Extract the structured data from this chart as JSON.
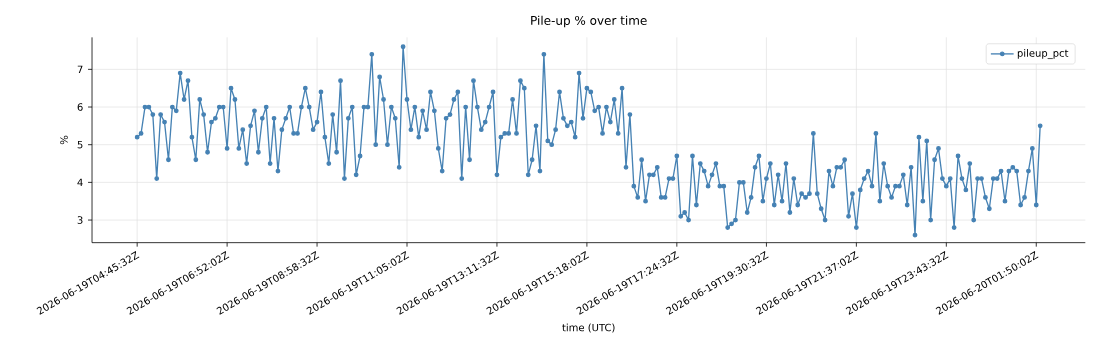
{
  "chart_data": {
    "type": "line",
    "title": "Pile-up % over time",
    "xlabel": "time (UTC)",
    "ylabel": "%",
    "x": [
      "2026-06-19T04:45:32",
      "2026-06-19T04:51:02",
      "2026-06-19T04:56:32",
      "2026-06-19T05:02:02",
      "2026-06-19T05:07:32",
      "2026-06-19T05:13:02",
      "2026-06-19T05:18:32",
      "2026-06-19T05:24:02",
      "2026-06-19T05:29:32",
      "2026-06-19T05:35:02",
      "2026-06-19T05:40:32",
      "2026-06-19T05:46:02",
      "2026-06-19T05:51:32",
      "2026-06-19T05:57:02",
      "2026-06-19T06:02:32",
      "2026-06-19T06:08:02",
      "2026-06-19T06:13:32",
      "2026-06-19T06:19:02",
      "2026-06-19T06:24:32",
      "2026-06-19T06:30:02",
      "2026-06-19T06:35:32",
      "2026-06-19T06:41:02",
      "2026-06-19T06:46:32",
      "2026-06-19T06:52:02",
      "2026-06-19T06:57:32",
      "2026-06-19T07:03:02",
      "2026-06-19T07:08:32",
      "2026-06-19T07:14:02",
      "2026-06-19T07:19:32",
      "2026-06-19T07:25:02",
      "2026-06-19T07:30:32",
      "2026-06-19T07:36:02",
      "2026-06-19T07:41:32",
      "2026-06-19T07:47:02",
      "2026-06-19T07:52:32",
      "2026-06-19T07:58:02",
      "2026-06-19T08:03:32",
      "2026-06-19T08:09:02",
      "2026-06-19T08:14:32",
      "2026-06-19T08:20:02",
      "2026-06-19T08:25:32",
      "2026-06-19T08:31:02",
      "2026-06-19T08:36:32",
      "2026-06-19T08:42:02",
      "2026-06-19T08:47:32",
      "2026-06-19T08:53:02",
      "2026-06-19T08:58:32",
      "2026-06-19T09:04:02",
      "2026-06-19T09:09:32",
      "2026-06-19T09:15:02",
      "2026-06-19T09:20:32",
      "2026-06-19T09:26:02",
      "2026-06-19T09:31:32",
      "2026-06-19T09:37:02",
      "2026-06-19T09:42:32",
      "2026-06-19T09:48:02",
      "2026-06-19T09:53:32",
      "2026-06-19T09:59:02",
      "2026-06-19T10:04:32",
      "2026-06-19T10:10:02",
      "2026-06-19T10:15:32",
      "2026-06-19T10:21:02",
      "2026-06-19T10:26:32",
      "2026-06-19T10:32:02",
      "2026-06-19T10:37:32",
      "2026-06-19T10:43:02",
      "2026-06-19T10:48:32",
      "2026-06-19T10:54:02",
      "2026-06-19T10:59:32",
      "2026-06-19T11:05:02",
      "2026-06-19T11:10:32",
      "2026-06-19T11:16:02",
      "2026-06-19T11:21:32",
      "2026-06-19T11:27:02",
      "2026-06-19T11:32:32",
      "2026-06-19T11:38:02",
      "2026-06-19T11:43:32",
      "2026-06-19T11:49:02",
      "2026-06-19T11:54:32",
      "2026-06-19T12:00:02",
      "2026-06-19T12:05:32",
      "2026-06-19T12:11:02",
      "2026-06-19T12:16:32",
      "2026-06-19T12:22:02",
      "2026-06-19T12:27:32",
      "2026-06-19T12:33:02",
      "2026-06-19T12:38:32",
      "2026-06-19T12:44:02",
      "2026-06-19T12:49:32",
      "2026-06-19T12:55:02",
      "2026-06-19T13:00:32",
      "2026-06-19T13:06:02",
      "2026-06-19T13:11:32",
      "2026-06-19T13:17:02",
      "2026-06-19T13:22:32",
      "2026-06-19T13:28:02",
      "2026-06-19T13:33:32",
      "2026-06-19T13:39:02",
      "2026-06-19T13:44:32",
      "2026-06-19T13:50:02",
      "2026-06-19T13:55:32",
      "2026-06-19T14:01:02",
      "2026-06-19T14:06:32",
      "2026-06-19T14:12:02",
      "2026-06-19T14:17:32",
      "2026-06-19T14:23:02",
      "2026-06-19T14:28:32",
      "2026-06-19T14:34:02",
      "2026-06-19T14:39:32",
      "2026-06-19T14:45:02",
      "2026-06-19T14:50:32",
      "2026-06-19T14:56:02",
      "2026-06-19T15:01:32",
      "2026-06-19T15:07:02",
      "2026-06-19T15:12:32",
      "2026-06-19T15:18:02",
      "2026-06-19T15:23:32",
      "2026-06-19T15:29:02",
      "2026-06-19T15:34:32",
      "2026-06-19T15:40:02",
      "2026-06-19T15:45:32",
      "2026-06-19T15:51:02",
      "2026-06-19T15:56:32",
      "2026-06-19T16:02:02",
      "2026-06-19T16:07:32",
      "2026-06-19T16:13:02",
      "2026-06-19T16:18:32",
      "2026-06-19T16:24:02",
      "2026-06-19T16:29:32",
      "2026-06-19T16:35:02",
      "2026-06-19T16:40:32",
      "2026-06-19T16:46:02",
      "2026-06-19T16:51:32",
      "2026-06-19T16:57:02",
      "2026-06-19T17:02:32",
      "2026-06-19T17:08:02",
      "2026-06-19T17:13:32",
      "2026-06-19T17:19:02",
      "2026-06-19T17:24:32",
      "2026-06-19T17:30:02",
      "2026-06-19T17:35:32",
      "2026-06-19T17:41:02",
      "2026-06-19T17:46:32",
      "2026-06-19T17:52:02",
      "2026-06-19T17:57:32",
      "2026-06-19T18:03:02",
      "2026-06-19T18:08:32",
      "2026-06-19T18:14:02",
      "2026-06-19T18:19:32",
      "2026-06-19T18:25:02",
      "2026-06-19T18:30:32",
      "2026-06-19T18:36:02",
      "2026-06-19T18:41:32",
      "2026-06-19T18:47:02",
      "2026-06-19T18:52:32",
      "2026-06-19T18:58:02",
      "2026-06-19T19:03:32",
      "2026-06-19T19:09:02",
      "2026-06-19T19:14:32",
      "2026-06-19T19:20:02",
      "2026-06-19T19:25:32",
      "2026-06-19T19:30:32",
      "2026-06-19T19:36:02",
      "2026-06-19T19:41:32",
      "2026-06-19T19:47:02",
      "2026-06-19T19:52:32",
      "2026-06-19T19:58:02",
      "2026-06-19T20:03:32",
      "2026-06-19T20:09:02",
      "2026-06-19T20:14:32",
      "2026-06-19T20:20:02",
      "2026-06-19T20:25:32",
      "2026-06-19T20:31:02",
      "2026-06-19T20:36:32",
      "2026-06-19T20:42:02",
      "2026-06-19T20:47:32",
      "2026-06-19T20:53:02",
      "2026-06-19T20:58:32",
      "2026-06-19T21:04:02",
      "2026-06-19T21:09:32",
      "2026-06-19T21:15:02",
      "2026-06-19T21:20:32",
      "2026-06-19T21:26:02",
      "2026-06-19T21:31:32",
      "2026-06-19T21:37:02",
      "2026-06-19T21:42:32",
      "2026-06-19T21:48:02",
      "2026-06-19T21:53:32",
      "2026-06-19T21:59:02",
      "2026-06-19T22:04:32",
      "2026-06-19T22:10:02",
      "2026-06-19T22:15:32",
      "2026-06-19T22:21:02",
      "2026-06-19T22:26:32",
      "2026-06-19T22:32:02",
      "2026-06-19T22:37:32",
      "2026-06-19T22:43:02",
      "2026-06-19T22:48:32",
      "2026-06-19T22:54:02",
      "2026-06-19T22:59:32",
      "2026-06-19T23:05:02",
      "2026-06-19T23:10:32",
      "2026-06-19T23:16:02",
      "2026-06-19T23:21:32",
      "2026-06-19T23:27:02",
      "2026-06-19T23:32:32",
      "2026-06-19T23:38:02",
      "2026-06-19T23:43:32",
      "2026-06-19T23:49:02",
      "2026-06-19T23:54:32",
      "2026-06-20T00:00:02",
      "2026-06-20T00:05:32",
      "2026-06-20T00:11:02",
      "2026-06-20T00:16:32",
      "2026-06-20T00:22:02",
      "2026-06-20T00:27:32",
      "2026-06-20T00:33:02",
      "2026-06-20T00:38:32",
      "2026-06-20T00:44:02",
      "2026-06-20T00:49:32",
      "2026-06-20T00:55:02",
      "2026-06-20T01:00:32",
      "2026-06-20T01:06:02",
      "2026-06-20T01:11:32",
      "2026-06-20T01:17:02",
      "2026-06-20T01:22:32",
      "2026-06-20T01:28:02",
      "2026-06-20T01:33:32",
      "2026-06-20T01:39:02",
      "2026-06-20T01:44:32",
      "2026-06-20T01:50:02",
      "2026-06-20T01:55:32"
    ],
    "series": [
      {
        "name": "pileup_pct",
        "color": "#4682b4",
        "values": [
          5.2,
          5.3,
          6.0,
          6.0,
          5.8,
          4.1,
          5.8,
          5.6,
          4.6,
          6.0,
          5.9,
          6.9,
          6.2,
          6.7,
          5.2,
          4.6,
          6.2,
          5.8,
          4.8,
          5.6,
          5.7,
          6.0,
          6.0,
          4.9,
          6.5,
          6.2,
          4.9,
          5.4,
          4.5,
          5.5,
          5.9,
          4.8,
          5.7,
          6.0,
          4.5,
          5.7,
          4.3,
          5.4,
          5.7,
          6.0,
          5.3,
          5.3,
          6.0,
          6.5,
          6.0,
          5.4,
          5.6,
          6.4,
          5.2,
          4.5,
          5.8,
          4.8,
          6.7,
          4.1,
          5.7,
          6.0,
          4.2,
          4.7,
          6.0,
          6.0,
          7.4,
          5.0,
          6.8,
          6.2,
          5.0,
          6.0,
          5.7,
          4.4,
          7.6,
          6.2,
          5.4,
          6.0,
          5.2,
          5.9,
          5.4,
          6.4,
          5.9,
          4.9,
          4.3,
          5.7,
          5.8,
          6.2,
          6.4,
          4.1,
          6.0,
          4.6,
          6.7,
          6.0,
          5.4,
          5.6,
          6.0,
          6.4,
          4.2,
          5.2,
          5.3,
          5.3,
          6.2,
          5.3,
          6.7,
          6.5,
          4.2,
          4.6,
          5.5,
          4.3,
          7.4,
          5.1,
          5.0,
          5.4,
          6.4,
          5.7,
          5.5,
          5.6,
          5.2,
          6.9,
          5.7,
          6.5,
          6.4,
          5.9,
          6.0,
          5.3,
          6.0,
          5.6,
          6.2,
          5.3,
          6.5,
          4.4,
          5.8,
          3.9,
          3.6,
          4.6,
          3.5,
          4.2,
          4.2,
          4.4,
          3.6,
          3.6,
          4.1,
          4.1,
          4.7,
          3.1,
          3.2,
          3.0,
          4.7,
          3.4,
          4.5,
          4.3,
          3.9,
          4.2,
          4.5,
          3.9,
          3.9,
          2.8,
          2.9,
          3.0,
          4.0,
          4.0,
          3.2,
          3.6,
          4.4,
          4.7,
          3.5,
          4.1,
          4.5,
          3.4,
          4.2,
          3.5,
          4.5,
          3.2,
          4.1,
          3.4,
          3.7,
          3.6,
          3.7,
          5.3,
          3.7,
          3.3,
          3.0,
          4.3,
          3.9,
          4.4,
          4.4,
          4.6,
          3.1,
          3.7,
          2.8,
          3.8,
          4.1,
          4.3,
          3.9,
          5.3,
          3.5,
          4.5,
          3.9,
          3.6,
          3.9,
          3.9,
          4.2,
          3.4,
          4.4,
          2.6,
          5.2,
          3.5,
          5.1,
          3.0,
          4.6,
          4.9,
          4.1,
          3.9,
          4.1,
          2.8,
          4.7,
          4.1,
          3.8,
          4.5,
          3.0,
          4.1,
          4.1,
          3.6,
          3.3,
          4.1,
          4.1,
          4.3,
          3.5,
          4.3,
          4.4,
          4.3,
          3.4,
          3.6,
          4.3,
          4.9,
          3.4,
          5.5
        ]
      }
    ],
    "xlim": [
      "2026-06-19T03:42:02",
      "2026-06-20T02:59:02"
    ],
    "xticks": [
      {
        "value": "2026-06-19T04:45:32",
        "label": "2026-06-19T04:45:32Z"
      },
      {
        "value": "2026-06-19T06:52:02",
        "label": "2026-06-19T06:52:02Z"
      },
      {
        "value": "2026-06-19T08:58:32",
        "label": "2026-06-19T08:58:32Z"
      },
      {
        "value": "2026-06-19T11:05:02",
        "label": "2026-06-19T11:05:02Z"
      },
      {
        "value": "2026-06-19T13:11:32",
        "label": "2026-06-19T13:11:32Z"
      },
      {
        "value": "2026-06-19T15:18:02",
        "label": "2026-06-19T15:18:02Z"
      },
      {
        "value": "2026-06-19T17:24:32",
        "label": "2026-06-19T17:24:32Z"
      },
      {
        "value": "2026-06-19T19:30:32",
        "label": "2026-06-19T19:30:32Z"
      },
      {
        "value": "2026-06-19T21:37:02",
        "label": "2026-06-19T21:37:02Z"
      },
      {
        "value": "2026-06-19T23:43:32",
        "label": "2026-06-19T23:43:32Z"
      },
      {
        "value": "2026-06-20T01:50:02",
        "label": "2026-06-20T01:50:02Z"
      }
    ],
    "ylim": [
      2.4,
      7.85
    ],
    "yticks": [
      3,
      4,
      5,
      6,
      7
    ],
    "grid": true,
    "legend": "top right",
    "marker": "circle",
    "line_style": "solid"
  }
}
